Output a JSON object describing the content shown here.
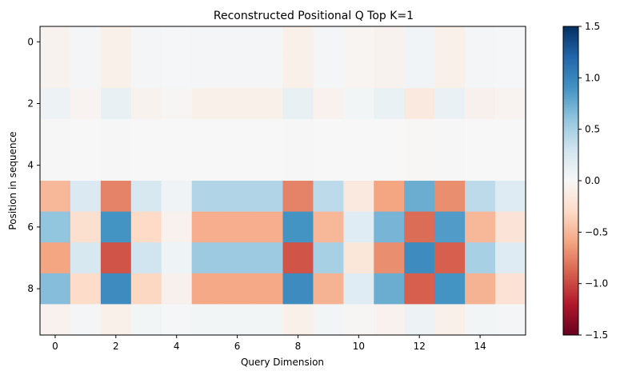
{
  "chart_data": {
    "type": "heatmap",
    "title": "Reconstructed Positional Q Top K=1",
    "xlabel": "Query Dimension",
    "ylabel": "Position in sequence",
    "colormap": "RdBu",
    "vmin": -1.5,
    "vmax": 1.5,
    "x_ticks": [
      "0",
      "2",
      "4",
      "6",
      "8",
      "10",
      "12",
      "14"
    ],
    "y_ticks": [
      "0",
      "2",
      "4",
      "6",
      "8"
    ],
    "colorbar_ticks": [
      "1.5",
      "1.0",
      "0.5",
      "0.0",
      "−0.5",
      "−1.0",
      "−1.5"
    ],
    "n_rows": 10,
    "n_cols": 16,
    "values": [
      [
        -0.05,
        0.03,
        -0.08,
        0.03,
        0.02,
        0.03,
        0.03,
        0.03,
        -0.08,
        0.03,
        -0.03,
        -0.05,
        0.05,
        -0.08,
        0.03,
        0.02
      ],
      [
        -0.05,
        0.03,
        -0.08,
        0.03,
        0.02,
        0.03,
        0.03,
        0.03,
        -0.08,
        0.03,
        -0.03,
        -0.05,
        0.05,
        -0.08,
        0.03,
        0.02
      ],
      [
        0.08,
        -0.04,
        0.12,
        -0.05,
        -0.02,
        -0.08,
        -0.08,
        -0.08,
        0.12,
        -0.06,
        0.04,
        0.1,
        -0.15,
        0.1,
        -0.07,
        -0.04
      ],
      [
        0.01,
        0.0,
        0.01,
        0.0,
        0.0,
        0.0,
        0.0,
        0.0,
        0.01,
        0.0,
        0.0,
        0.0,
        -0.01,
        0.01,
        0.0,
        0.0
      ],
      [
        0.01,
        0.0,
        0.01,
        0.0,
        0.0,
        0.0,
        0.0,
        0.0,
        0.01,
        0.0,
        0.0,
        0.0,
        -0.01,
        0.01,
        0.0,
        0.0
      ],
      [
        -0.5,
        0.22,
        -0.75,
        0.25,
        0.06,
        0.45,
        0.45,
        0.45,
        -0.75,
        0.4,
        -0.15,
        -0.6,
        0.75,
        -0.7,
        0.4,
        0.2
      ],
      [
        0.6,
        -0.25,
        0.9,
        -0.3,
        -0.06,
        -0.55,
        -0.55,
        -0.55,
        0.9,
        -0.5,
        0.18,
        0.7,
        -0.85,
        0.85,
        -0.5,
        -0.2
      ],
      [
        -0.6,
        0.25,
        -0.95,
        0.3,
        0.07,
        0.55,
        0.55,
        0.55,
        -0.95,
        0.5,
        -0.18,
        -0.7,
        0.95,
        -0.9,
        0.5,
        0.2
      ],
      [
        0.65,
        -0.28,
        0.95,
        -0.32,
        -0.07,
        -0.58,
        -0.58,
        -0.58,
        0.95,
        -0.52,
        0.18,
        0.75,
        -0.9,
        0.9,
        -0.52,
        -0.22
      ],
      [
        -0.06,
        0.03,
        -0.08,
        0.04,
        0.02,
        0.04,
        0.04,
        0.04,
        -0.08,
        0.04,
        -0.02,
        -0.06,
        0.08,
        -0.08,
        0.04,
        0.03
      ]
    ]
  }
}
